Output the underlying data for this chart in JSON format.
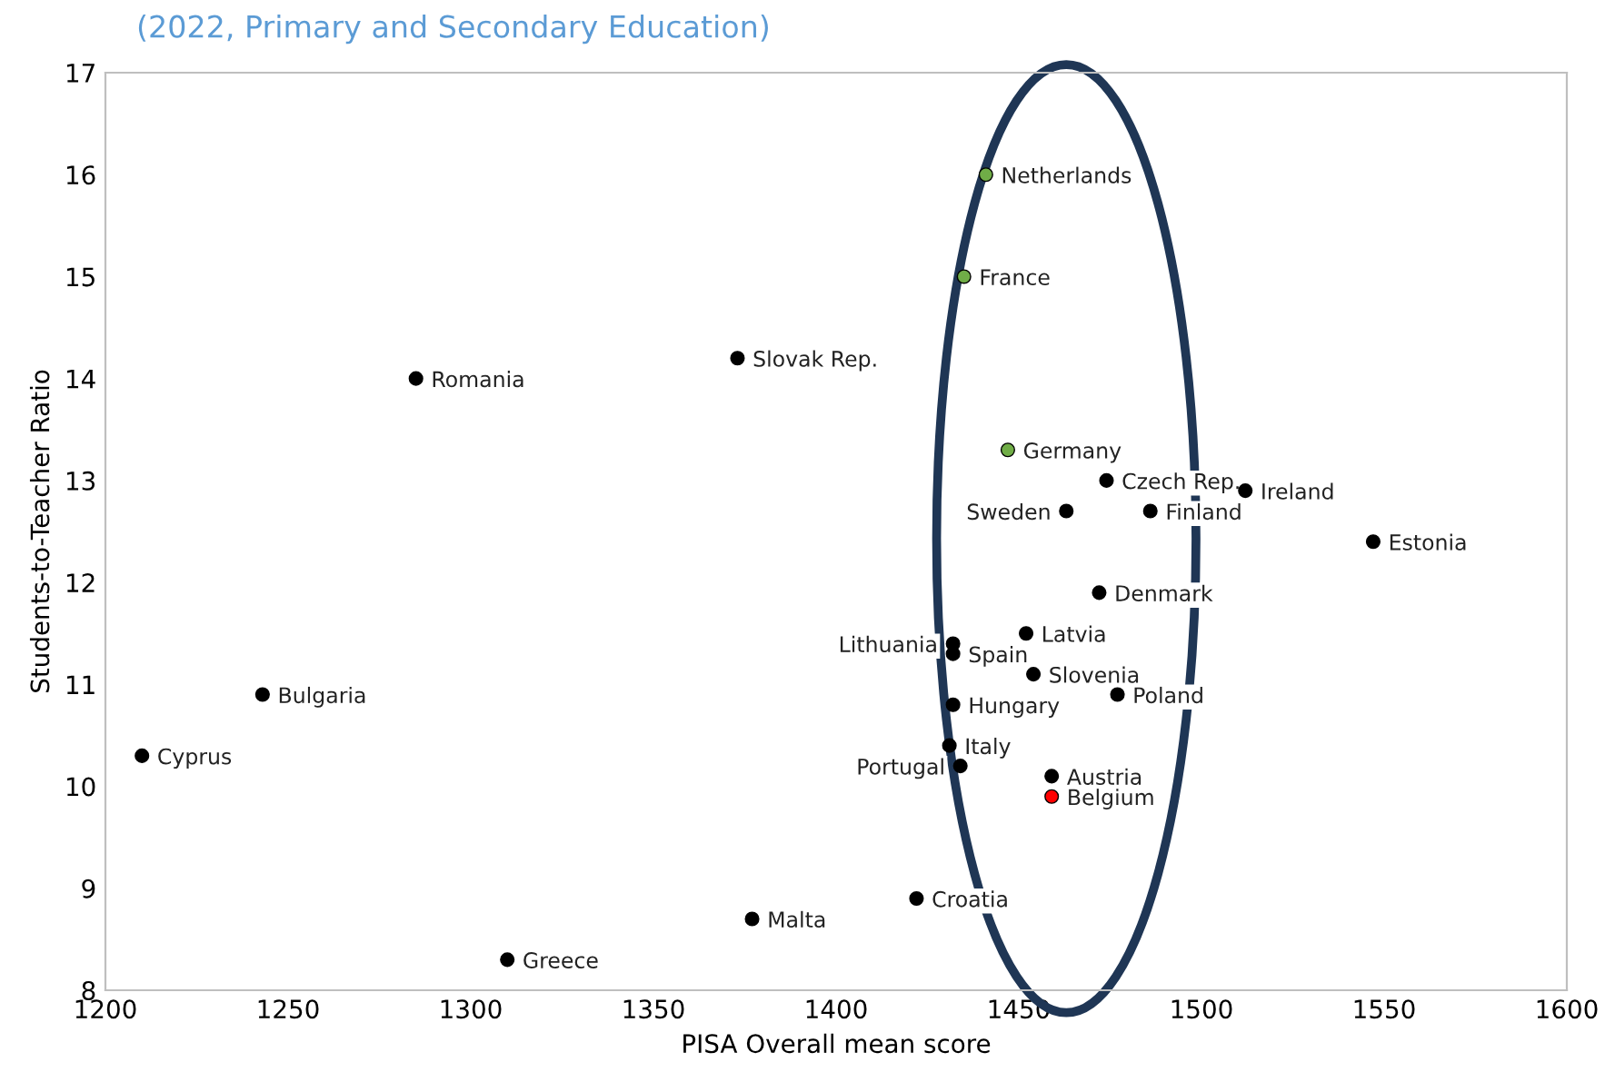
{
  "chart_data": {
    "type": "scatter",
    "subtitle": "(2022, Primary and Secondary Education)",
    "xlabel": "PISA Overall mean score",
    "ylabel": "Students-to-Teacher Ratio",
    "x": [
      1441,
      1435,
      1285,
      1373,
      1447,
      1474,
      1463,
      1486,
      1512,
      1547,
      1472,
      1452,
      1432,
      1432,
      1454,
      1477,
      1432,
      1431,
      1434,
      1459,
      1459,
      1422,
      1377,
      1310,
      1243,
      1210
    ],
    "values": [
      16.0,
      15.0,
      14.0,
      14.2,
      13.3,
      13.0,
      12.7,
      12.7,
      12.9,
      12.4,
      11.9,
      11.5,
      11.4,
      11.3,
      11.1,
      10.9,
      10.8,
      10.4,
      10.2,
      10.1,
      9.9,
      8.9,
      8.7,
      8.3,
      10.9,
      10.3
    ],
    "colors": [
      "#70ad47",
      "#70ad47",
      "#000000",
      "#000000",
      "#70ad47",
      "#000000",
      "#000000",
      "#000000",
      "#000000",
      "#000000",
      "#000000",
      "#000000",
      "#000000",
      "#000000",
      "#000000",
      "#000000",
      "#000000",
      "#000000",
      "#000000",
      "#000000",
      "#ff0000",
      "#000000",
      "#000000",
      "#000000",
      "#000000",
      "#000000"
    ],
    "annotations": [
      {
        "text": "Netherlands",
        "x": 1441,
        "y": 16.0
      },
      {
        "text": "France",
        "x": 1435,
        "y": 15.0
      },
      {
        "text": "Romania",
        "x": 1285,
        "y": 14.0
      },
      {
        "text": "Slovak Rep.",
        "x": 1373,
        "y": 14.2
      },
      {
        "text": "Germany",
        "x": 1447,
        "y": 13.3
      },
      {
        "text": "Czech Rep.",
        "x": 1474,
        "y": 13.0
      },
      {
        "text": "Sweden",
        "x": 1463,
        "y": 12.7
      },
      {
        "text": "Finland",
        "x": 1486,
        "y": 12.7
      },
      {
        "text": "Ireland",
        "x": 1512,
        "y": 12.9
      },
      {
        "text": "Estonia",
        "x": 1547,
        "y": 12.4
      },
      {
        "text": "Denmark",
        "x": 1472,
        "y": 11.9
      },
      {
        "text": "Latvia",
        "x": 1452,
        "y": 11.5
      },
      {
        "text": "Lithuania",
        "x": 1432,
        "y": 11.4
      },
      {
        "text": "Spain",
        "x": 1432,
        "y": 11.3
      },
      {
        "text": "Slovenia",
        "x": 1454,
        "y": 11.1
      },
      {
        "text": "Poland",
        "x": 1477,
        "y": 10.9
      },
      {
        "text": "Hungary",
        "x": 1432,
        "y": 10.8
      },
      {
        "text": "Italy",
        "x": 1431,
        "y": 10.4
      },
      {
        "text": "Portugal",
        "x": 1434,
        "y": 10.2
      },
      {
        "text": "Austria",
        "x": 1459,
        "y": 10.1
      },
      {
        "text": "Belgium",
        "x": 1459,
        "y": 9.9
      },
      {
        "text": "Croatia",
        "x": 1422,
        "y": 8.9
      },
      {
        "text": "Malta",
        "x": 1377,
        "y": 8.7
      },
      {
        "text": "Greece",
        "x": 1310,
        "y": 8.3
      },
      {
        "text": "Bulgaria",
        "x": 1243,
        "y": 10.9
      },
      {
        "text": "Cyprus",
        "x": 1210,
        "y": 10.3
      }
    ],
    "xlim": [
      1200,
      1600
    ],
    "xticks": [
      1200,
      1250,
      1300,
      1350,
      1400,
      1450,
      1500,
      1550,
      1600
    ],
    "ylim": [
      8,
      17
    ],
    "yticks": [
      8,
      9,
      10,
      11,
      12,
      13,
      14,
      15,
      16,
      17
    ],
    "marker": "circle",
    "grid": false
  }
}
